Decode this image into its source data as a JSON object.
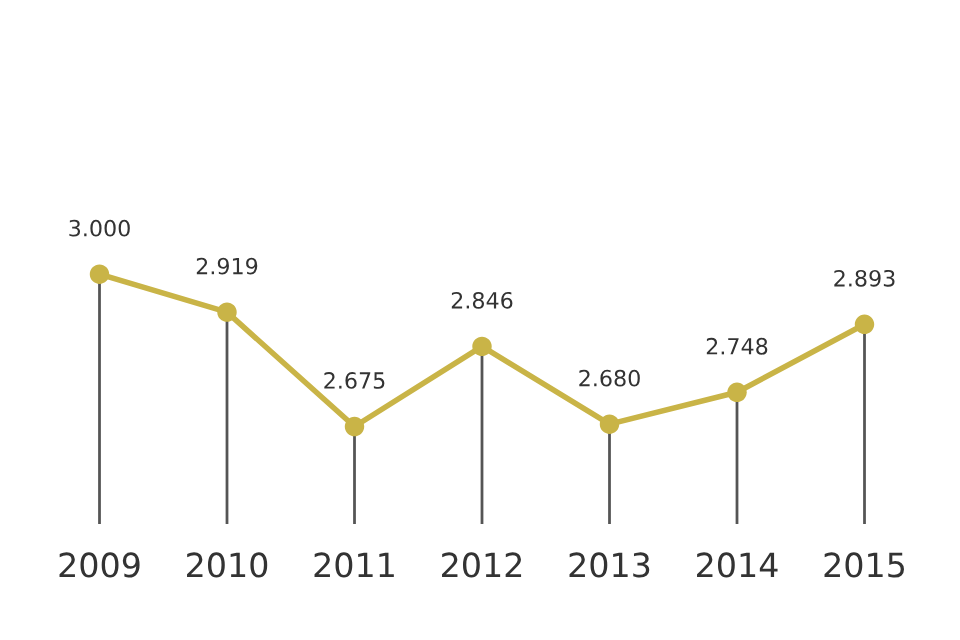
{
  "chart_data": {
    "type": "line",
    "categories": [
      null,
      "2009",
      "2010",
      "2011",
      "2012",
      "2013",
      "2014",
      "2015",
      null
    ],
    "series": [
      {
        "color": "#c9b447",
        "values": [
          null,
          3.0,
          2.919,
          2.675,
          2.846,
          2.68,
          2.748,
          2.893,
          null
        ],
        "value_labels": [
          null,
          "3.000",
          "2.919",
          "2.675",
          "2.846",
          "2.680",
          "2.748",
          "2.893",
          null
        ]
      }
    ],
    "tick_labels": "x",
    "grid": "x",
    "marker": "circle",
    "line_style": "solid"
  }
}
